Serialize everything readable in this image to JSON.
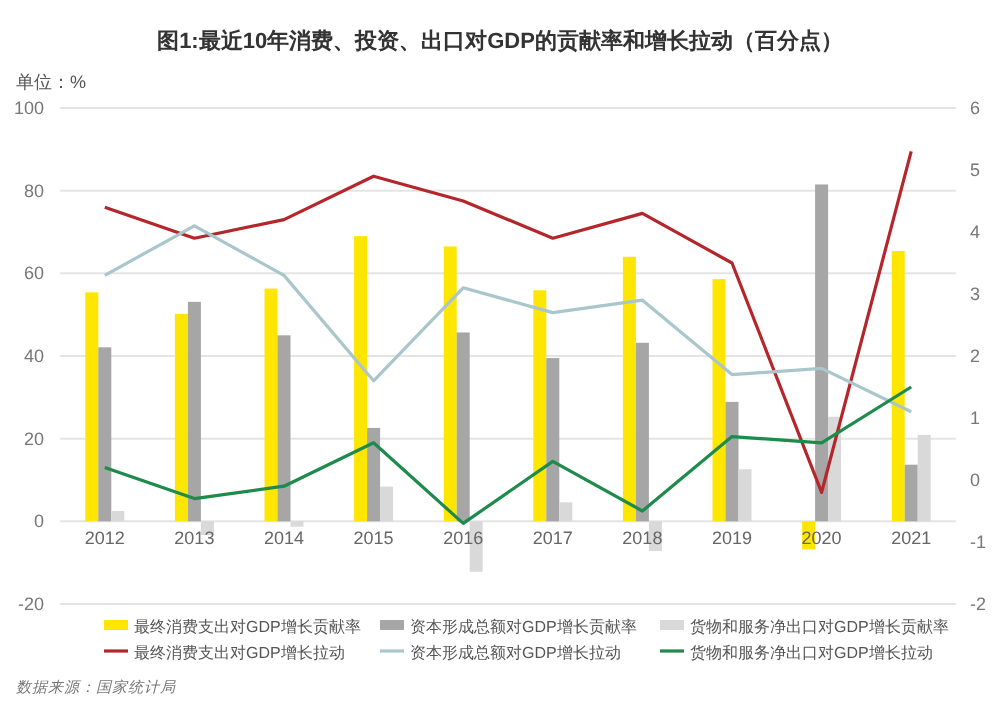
{
  "chart_data": {
    "type": "bar",
    "title": "图1:最近10年消费、投资、出口对GDP的贡献率和增长拉动（百分点）",
    "ylabel": "单位：%",
    "categories": [
      "2012",
      "2013",
      "2014",
      "2015",
      "2016",
      "2017",
      "2018",
      "2019",
      "2020",
      "2021"
    ],
    "series": [
      {
        "name": "最终消费支出对GDP增长贡献率",
        "color": "#ffe600",
        "values": [
          55.4,
          50.2,
          56.3,
          69.0,
          66.5,
          55.9,
          64.0,
          58.6,
          -6.8,
          65.4
        ]
      },
      {
        "name": "资本形成总额对GDP增长贡献率",
        "color": "#a6a6a6",
        "values": [
          42.1,
          53.1,
          45.0,
          22.6,
          45.7,
          39.5,
          43.2,
          28.9,
          81.5,
          13.7
        ]
      },
      {
        "name": "货物和服务净出口对GDP增长贡献率",
        "color": "#d9d9d9",
        "values": [
          2.5,
          -3.3,
          -1.3,
          8.4,
          -12.2,
          4.6,
          -7.2,
          12.6,
          25.3,
          20.9
        ]
      },
      {
        "name": "最终消费支出对GDP增长拉动",
        "type": "line",
        "axis": "y2",
        "color": "#b5262b",
        "values": [
          4.4,
          3.9,
          4.2,
          4.9,
          4.5,
          3.9,
          4.3,
          3.5,
          -0.2,
          5.3
        ]
      },
      {
        "name": "资本形成总额对GDP增长拉动",
        "type": "line",
        "axis": "y2",
        "color": "#a9c6cc",
        "values": [
          3.3,
          4.1,
          3.3,
          1.6,
          3.1,
          2.7,
          2.9,
          1.7,
          1.8,
          1.1
        ]
      },
      {
        "name": "货物和服务净出口对GDP增长拉动",
        "type": "line",
        "axis": "y2",
        "color": "#1e8a4c",
        "values": [
          0.2,
          -0.3,
          -0.1,
          0.6,
          -0.7,
          0.3,
          -0.5,
          0.7,
          0.6,
          1.5
        ]
      }
    ],
    "ylim": [
      -20,
      100
    ],
    "yticks": [
      -20,
      0,
      20,
      40,
      60,
      80,
      100
    ],
    "y2lim": [
      -2,
      6
    ],
    "y2ticks": [
      -2,
      -1,
      0,
      1,
      2,
      3,
      4,
      5,
      6
    ],
    "grid": "y",
    "legend": "bottom",
    "annotations": [
      "数据来源：国家统计局"
    ]
  }
}
